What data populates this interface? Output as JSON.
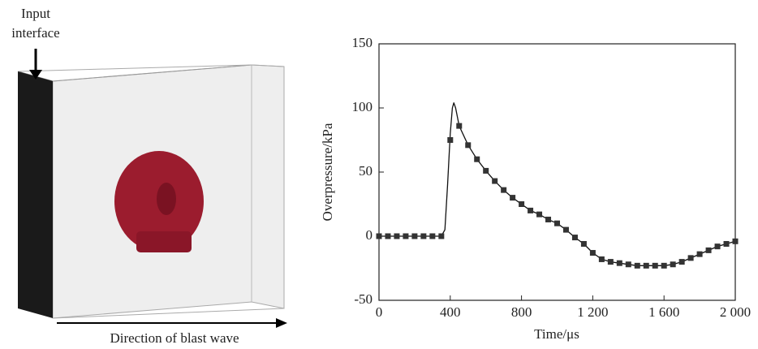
{
  "diagram": {
    "input_label": [
      "Input",
      "interface"
    ],
    "direction_label": "Direction of blast wave"
  },
  "chart_data": {
    "type": "line",
    "xlabel": "Time/μs",
    "ylabel": "Overpressure/kPa",
    "xlim": [
      0,
      2000
    ],
    "xticks": [
      0,
      400,
      800,
      {
        "value": 1200,
        "label": "1 200"
      },
      {
        "value": 1600,
        "label": "1 600"
      },
      {
        "value": 2000,
        "label": "2 000"
      }
    ],
    "ylim": [
      -50,
      150
    ],
    "yticks": [
      -50,
      0,
      50,
      100,
      150
    ],
    "series": [
      {
        "color": "#111111",
        "marker": false,
        "x": [
          0,
          350,
          370,
          385,
          400,
          412,
          420,
          430,
          450,
          500,
          550,
          600,
          650,
          700,
          750,
          800,
          850,
          900,
          950,
          1000,
          1050,
          1100,
          1150,
          1200,
          1250,
          1300,
          1350,
          1400,
          1450,
          1500,
          1550,
          1600,
          1650,
          1700,
          1750,
          1800,
          1850,
          1900,
          1950,
          2000
        ],
        "values": [
          0,
          0,
          5,
          40,
          80,
          100,
          104,
          100,
          86,
          71,
          60,
          51,
          43,
          36,
          30,
          25,
          20,
          17,
          13,
          10,
          5,
          -1,
          -6,
          -13,
          -18,
          -20,
          -21,
          -22,
          -23,
          -23,
          -23,
          -23,
          -22,
          -20,
          -17,
          -14,
          -11,
          -8,
          -6,
          -4
        ]
      },
      {
        "color": "#333333",
        "marker": true,
        "x": [
          0,
          50,
          100,
          150,
          200,
          250,
          300,
          350,
          400,
          450,
          500,
          550,
          600,
          650,
          700,
          750,
          800,
          850,
          900,
          950,
          1000,
          1050,
          1100,
          1150,
          1200,
          1250,
          1300,
          1350,
          1400,
          1450,
          1500,
          1550,
          1600,
          1650,
          1700,
          1750,
          1800,
          1850,
          1900,
          1950,
          2000
        ],
        "values": [
          0,
          0,
          0,
          0,
          0,
          0,
          0,
          0,
          75,
          86,
          71,
          60,
          51,
          43,
          36,
          30,
          25,
          20,
          17,
          13,
          10,
          5,
          -1,
          -6,
          -13,
          -18,
          -20,
          -21,
          -22,
          -23,
          -23,
          -23,
          -23,
          -22,
          -20,
          -17,
          -14,
          -11,
          -8,
          -6,
          -4
        ]
      }
    ]
  }
}
